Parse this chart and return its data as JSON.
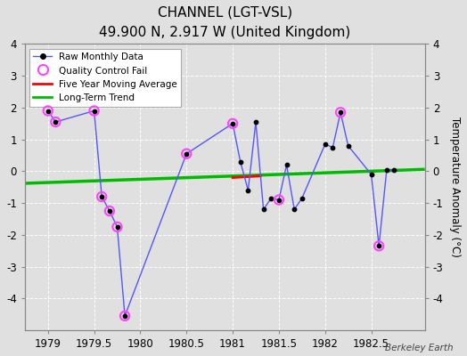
{
  "title": "CHANNEL (LGT-VSL)",
  "subtitle": "49.900 N, 2.917 W (United Kingdom)",
  "ylabel": "Temperature Anomaly (°C)",
  "watermark": "Berkeley Earth",
  "xlim": [
    1978.75,
    1983.08
  ],
  "ylim": [
    -5,
    4
  ],
  "yticks": [
    -4,
    -3,
    -2,
    -1,
    0,
    1,
    2,
    3,
    4
  ],
  "xticks": [
    1979,
    1979.5,
    1980,
    1980.5,
    1981,
    1981.5,
    1982,
    1982.5
  ],
  "xtick_labels": [
    "1979",
    "1979.5",
    "1980",
    "1980.5",
    "1981",
    "1981.5",
    "1982",
    "1982.5"
  ],
  "background_color": "#e0e0e0",
  "raw_x": [
    1979.0,
    1979.083,
    1979.5,
    1979.583,
    1979.667,
    1979.75,
    1979.833,
    1980.5,
    1981.0,
    1981.083,
    1981.167,
    1981.25,
    1981.333,
    1981.417,
    1981.5,
    1981.583,
    1981.667,
    1981.75,
    1982.0,
    1982.083,
    1982.167,
    1982.25,
    1982.5,
    1982.583,
    1982.667,
    1982.75
  ],
  "raw_y": [
    1.9,
    1.55,
    1.9,
    -0.8,
    -1.25,
    -1.75,
    -4.55,
    0.55,
    1.5,
    0.3,
    -0.6,
    1.55,
    -1.2,
    -0.85,
    -0.9,
    0.2,
    -1.2,
    -0.85,
    0.85,
    0.75,
    1.85,
    0.8,
    -0.1,
    -2.35,
    0.05,
    0.05
  ],
  "qc_fail_x": [
    1979.0,
    1979.083,
    1979.5,
    1979.583,
    1979.667,
    1979.75,
    1979.833,
    1980.5,
    1981.0,
    1981.5,
    1982.167,
    1982.583
  ],
  "qc_fail_y": [
    1.9,
    1.55,
    1.9,
    -0.8,
    -1.25,
    -1.75,
    -4.55,
    0.55,
    1.5,
    -0.9,
    1.85,
    -2.35
  ],
  "trend_x": [
    1978.75,
    1983.08
  ],
  "trend_y": [
    -0.38,
    0.06
  ],
  "line_color": "#5555ff",
  "dot_color": "#000000",
  "qc_color": "#ff44ff",
  "trend_color": "#00bb00",
  "ma_color": "#ff0000",
  "grid_color": "#ffffff",
  "spine_color": "#888888"
}
